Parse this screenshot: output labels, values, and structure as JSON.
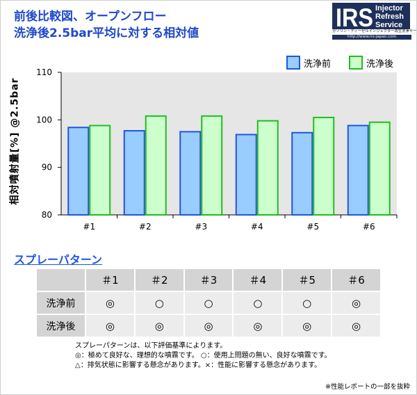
{
  "header": {
    "title_line1": "前後比較図、オープンフロー",
    "title_line2": "洗浄後2.5bar平均に対する相対値"
  },
  "logo": {
    "mark": "IRS",
    "word1": "Injector",
    "word2": "Refresh",
    "word3": "Service",
    "subtitle": "ガソリン・ディーゼルインジェクター再生洗浄サービス",
    "url": "http://www.irs-japan.com",
    "colors": {
      "navy": "#1e2f5a"
    }
  },
  "chart_data": {
    "type": "bar",
    "categories": [
      "#1",
      "#2",
      "#3",
      "#4",
      "#5",
      "#6"
    ],
    "series": [
      {
        "name": "洗浄前",
        "values": [
          98.4,
          97.7,
          97.5,
          96.9,
          97.3,
          98.8
        ],
        "color": "#99ccff",
        "edge": "#1f55e0"
      },
      {
        "name": "洗浄後",
        "values": [
          98.8,
          100.8,
          100.8,
          99.8,
          100.5,
          99.5
        ],
        "color": "#ccffcc",
        "edge": "#22bb22"
      }
    ],
    "ylabel": "相対噴射量[%] @2.5bar",
    "ylim": [
      80,
      110
    ],
    "yticks": [
      "80",
      "90",
      "100",
      "110"
    ],
    "grid": false,
    "legend": "top-right",
    "plot_bg": "#e6e6e6"
  },
  "spray": {
    "section_title": "スプレーパターン",
    "columns": [
      "＃1",
      "＃2",
      "＃3",
      "＃4",
      "＃5",
      "＃6"
    ],
    "rows": [
      {
        "label": "洗浄前",
        "marks": [
          "◎",
          "○",
          "○",
          "○",
          "○",
          "◎"
        ]
      },
      {
        "label": "洗浄後",
        "marks": [
          "◎",
          "◎",
          "◎",
          "◎",
          "◎",
          "◎"
        ]
      }
    ]
  },
  "notes": {
    "line1": "スプレーパターンは、以下評価基準によります。",
    "line2": "◎：極めて良好な、理想的な噴霧です。 ○：使用上問題の無い、良好な噴霧です。",
    "line3": "△：排気状態に影響する懸念があります。×：性能に影響する懸念があります。",
    "footnote": "※性能レポートの一部を抜粋"
  }
}
